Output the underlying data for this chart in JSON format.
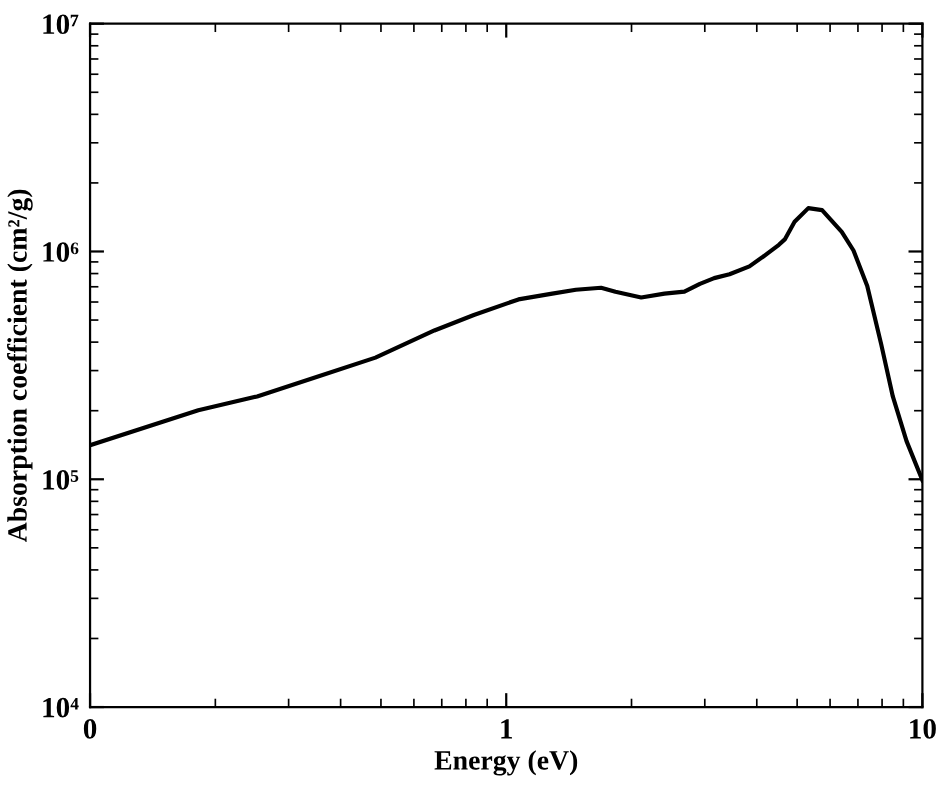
{
  "chart_data": {
    "type": "line",
    "xlabel": "Energy (eV)",
    "ylabel": "Absorption coefficient (cm²/g)",
    "log": "xy",
    "xlim": [
      0.1,
      10
    ],
    "ylim": [
      10000,
      10000000
    ],
    "xticks": [
      {
        "value": 0.1,
        "label": "0"
      },
      1,
      10
    ],
    "yticks": [
      {
        "value": 10000,
        "label": "10⁴"
      },
      {
        "value": 100000,
        "label": "10⁵"
      },
      {
        "value": 1000000,
        "label": "10⁶"
      },
      {
        "value": 10000000,
        "label": "10⁷"
      }
    ],
    "marker": "none",
    "line_style": "solid",
    "x": [
      0.1,
      0.182,
      0.252,
      0.35,
      0.485,
      0.672,
      0.836,
      1.07,
      1.29,
      1.47,
      1.69,
      1.83,
      2.11,
      2.4,
      2.68,
      2.92,
      3.16,
      3.44,
      3.84,
      4.14,
      4.52,
      4.67,
      4.93,
      5.32,
      5.74,
      6.4,
      6.83,
      7.37,
      7.96,
      8.49,
      9.16,
      10
    ],
    "series": [
      {
        "color": "#000000",
        "values": [
          141000,
          201000,
          231000,
          281000,
          342000,
          450000,
          526000,
          616000,
          653000,
          679000,
          693000,
          666000,
          628000,
          653000,
          666000,
          721000,
          764000,
          794000,
          860000,
          948000,
          1070000,
          1130000,
          1350000,
          1550000,
          1520000,
          1220000,
          1010000,
          706000,
          392000,
          231000,
          147000,
          99000
        ]
      }
    ]
  }
}
